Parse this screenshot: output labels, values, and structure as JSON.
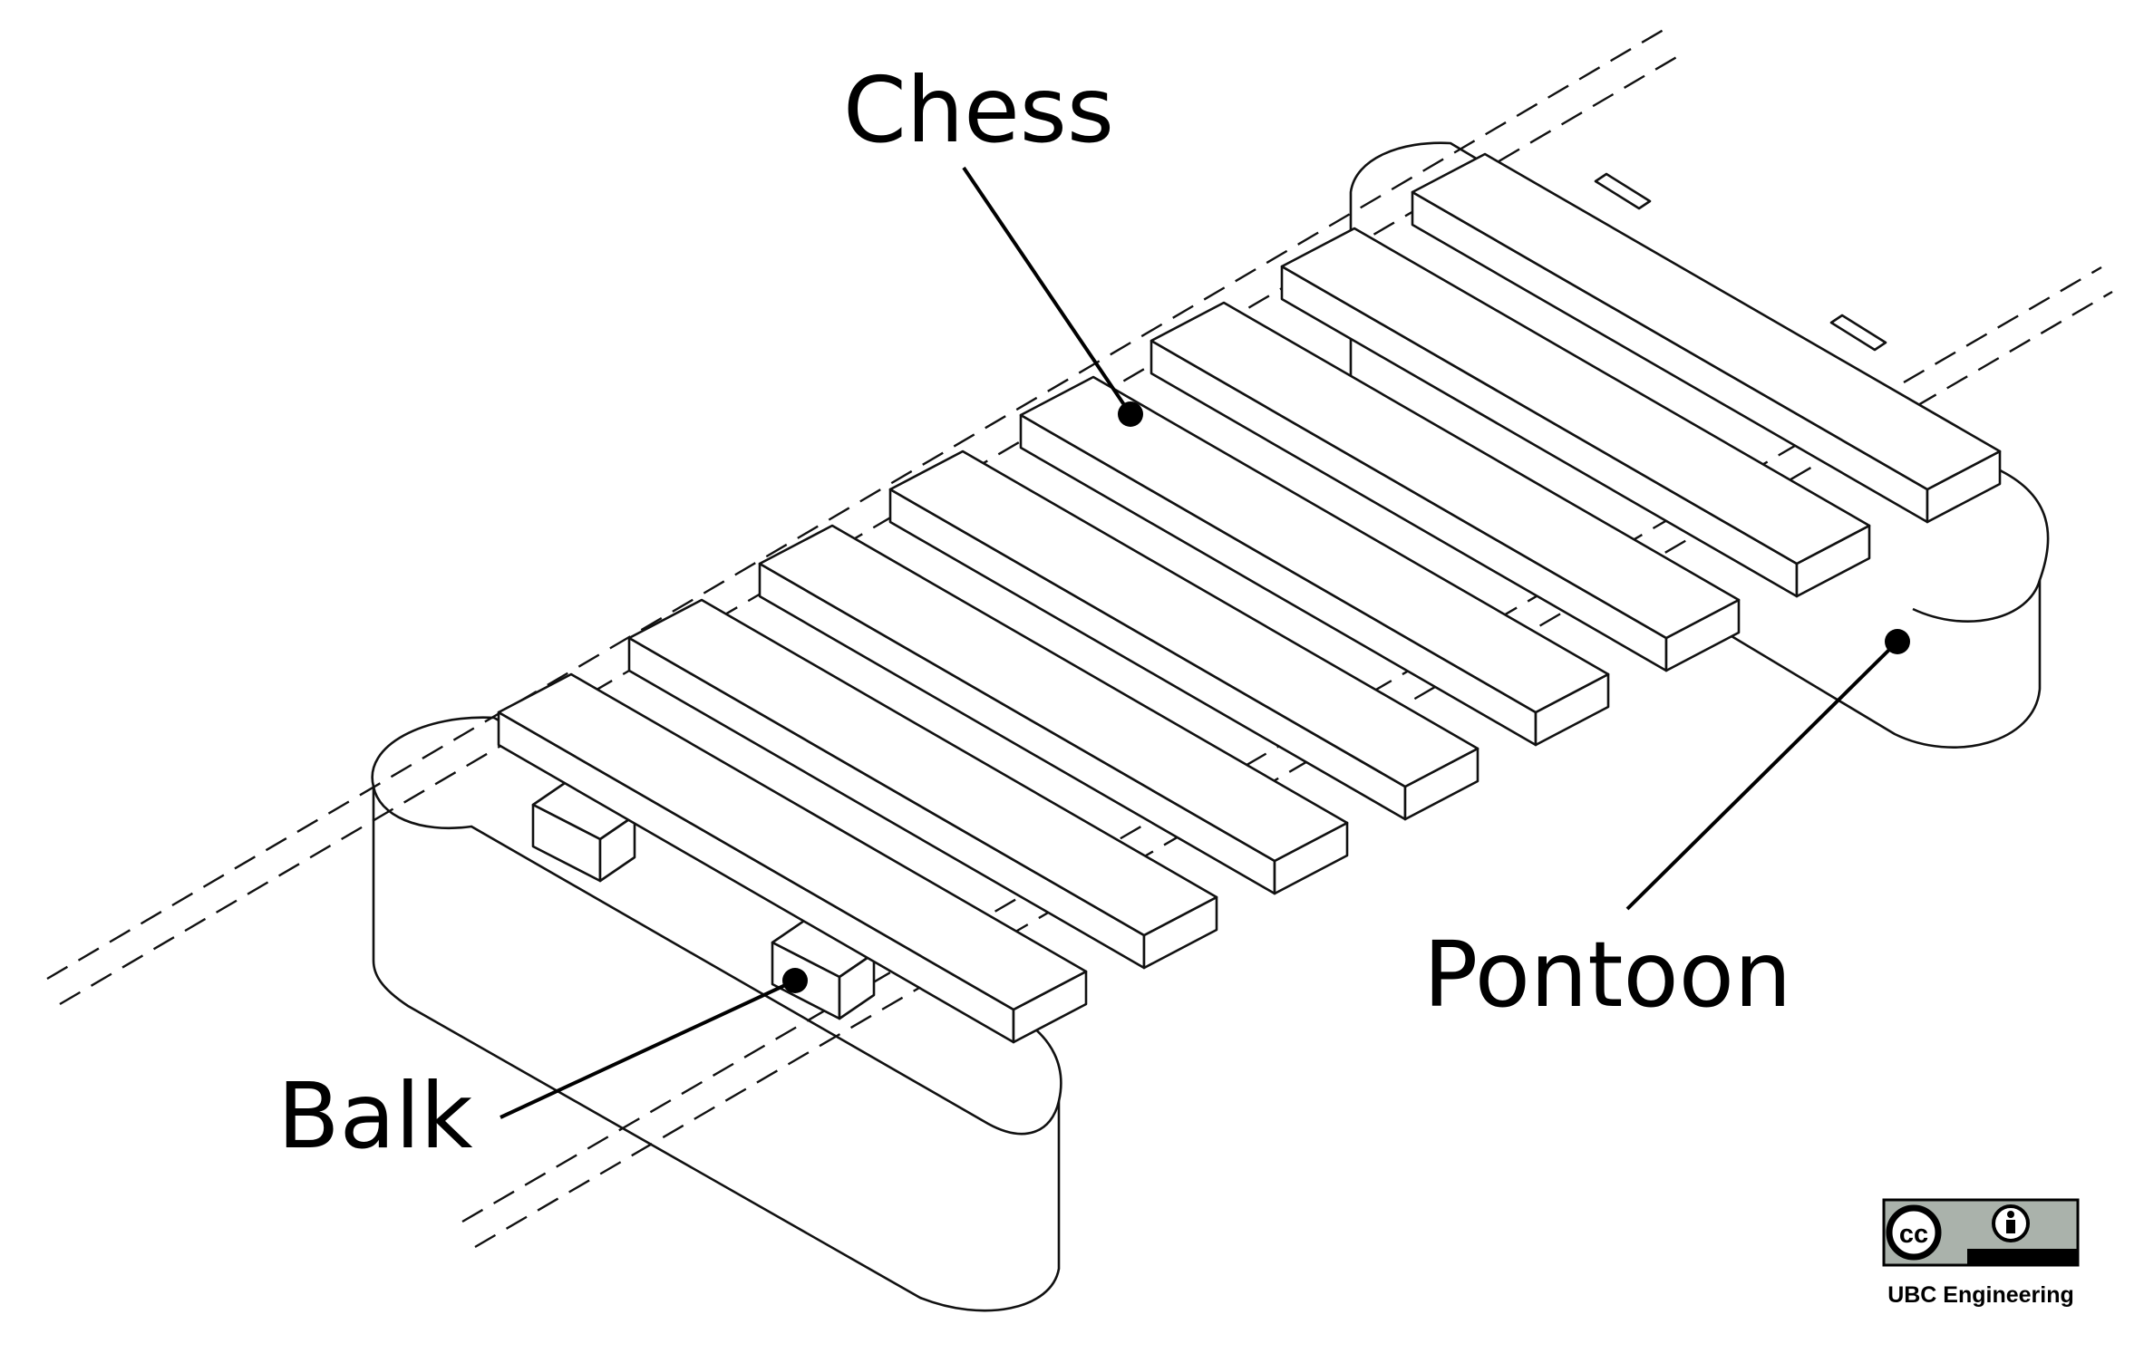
{
  "labels": {
    "chess": "Chess",
    "pontoon": "Pontoon",
    "balk": "Balk"
  },
  "credit": {
    "license_icon": "cc-by-icon",
    "license_by": "BY",
    "cc_mark": "cc",
    "organization": "UBC Engineering"
  },
  "colors": {
    "line": "#111111",
    "badge_gray": "#aab2ab",
    "badge_black": "#000000"
  }
}
